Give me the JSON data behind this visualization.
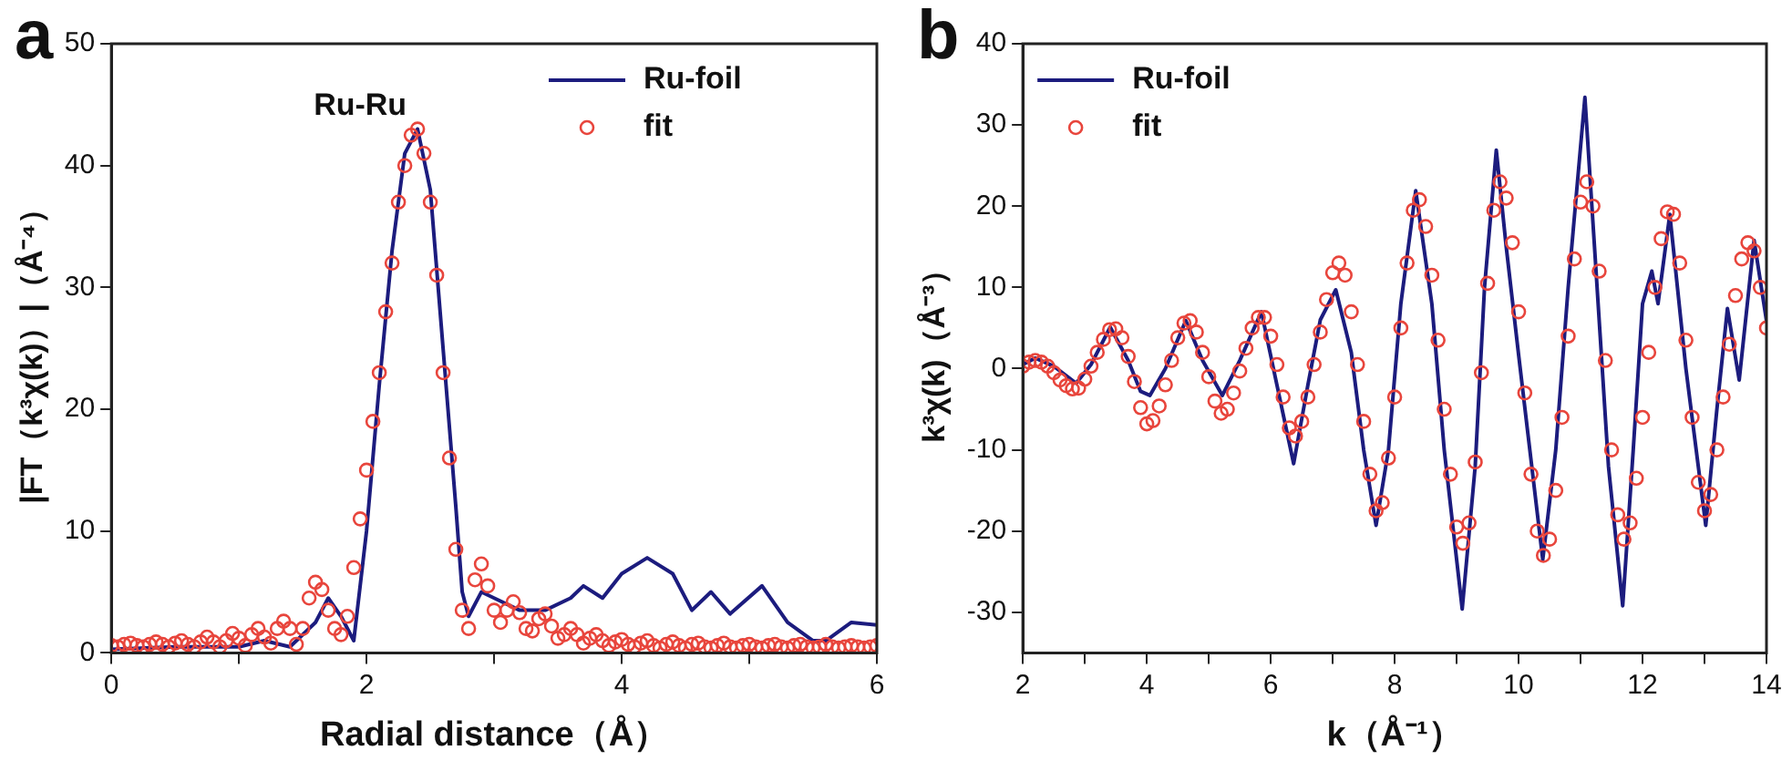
{
  "chart_data": [
    {
      "type": "line",
      "xlabel": "Radial distance（Å）",
      "ylabel": "|FT（k³χ(k)）|（Å⁻⁴）",
      "annotations": [
        "a",
        {
          "text": "Ru-Ru",
          "x": 2.4,
          "y": 43
        }
      ],
      "xlim": [
        0,
        6
      ],
      "xticks": [
        0,
        {
          "value": 1,
          "label": null
        },
        2,
        {
          "value": 3,
          "label": null
        },
        4,
        {
          "value": 5,
          "label": null
        },
        6
      ],
      "ylim": [
        0,
        50
      ],
      "yticks": [
        0,
        10,
        20,
        30,
        40,
        50
      ],
      "legend": "top right",
      "series": [
        {
          "name": "Ru-foil",
          "type": "line",
          "marker": "none",
          "color": "#1c1c7e",
          "x": [
            0,
            0.5,
            1.0,
            1.2,
            1.4,
            1.6,
            1.7,
            1.8,
            1.9,
            2.0,
            2.1,
            2.2,
            2.3,
            2.4,
            2.5,
            2.6,
            2.7,
            2.75,
            2.8,
            2.9,
            3.0,
            3.2,
            3.4,
            3.6,
            3.7,
            3.85,
            4.0,
            4.2,
            4.4,
            4.55,
            4.7,
            4.85,
            5.1,
            5.3,
            5.5,
            5.6,
            5.8,
            6.0
          ],
          "values": [
            0.3,
            0.5,
            0.5,
            1.0,
            0.5,
            2.5,
            4.5,
            3,
            1,
            10,
            22,
            33,
            41,
            43,
            38,
            25,
            12,
            5,
            3,
            5,
            4.5,
            3.5,
            3.5,
            4.5,
            5.5,
            4.5,
            6.5,
            7.8,
            6.5,
            3.5,
            5,
            3.2,
            5.5,
            2.5,
            1.0,
            1.0,
            2.5,
            2.3
          ]
        },
        {
          "name": "fit",
          "type": "scatter",
          "marker": "circle",
          "color": "#e8453c",
          "x": [
            0,
            0.05,
            0.1,
            0.15,
            0.2,
            0.25,
            0.3,
            0.35,
            0.4,
            0.45,
            0.5,
            0.55,
            0.6,
            0.65,
            0.7,
            0.75,
            0.8,
            0.85,
            0.9,
            0.95,
            1.0,
            1.05,
            1.1,
            1.15,
            1.2,
            1.25,
            1.3,
            1.35,
            1.4,
            1.45,
            1.5,
            1.55,
            1.6,
            1.65,
            1.7,
            1.75,
            1.8,
            1.85,
            1.9,
            1.95,
            2.0,
            2.05,
            2.1,
            2.15,
            2.2,
            2.25,
            2.3,
            2.35,
            2.4,
            2.45,
            2.5,
            2.55,
            2.6,
            2.65,
            2.7,
            2.75,
            2.8,
            2.85,
            2.9,
            2.95,
            3.0,
            3.05,
            3.1,
            3.15,
            3.2,
            3.25,
            3.3,
            3.35,
            3.4,
            3.45,
            3.5,
            3.55,
            3.6,
            3.65,
            3.7,
            3.75,
            3.8,
            3.85,
            3.9,
            3.95,
            4.0,
            4.05,
            4.1,
            4.15,
            4.2,
            4.25,
            4.3,
            4.35,
            4.4,
            4.45,
            4.5,
            4.55,
            4.6,
            4.65,
            4.7,
            4.75,
            4.8,
            4.85,
            4.9,
            4.95,
            5.0,
            5.05,
            5.1,
            5.15,
            5.2,
            5.25,
            5.3,
            5.35,
            5.4,
            5.45,
            5.5,
            5.55,
            5.6,
            5.65,
            5.7,
            5.75,
            5.8,
            5.85,
            5.9,
            5.95,
            6.0
          ],
          "values": [
            0.6,
            0.5,
            0.7,
            0.8,
            0.6,
            0.5,
            0.7,
            0.9,
            0.7,
            0.5,
            0.8,
            1.0,
            0.7,
            0.5,
            0.9,
            1.3,
            0.9,
            0.5,
            1.0,
            1.6,
            1.2,
            0.6,
            1.5,
            2.0,
            1.3,
            0.8,
            2.0,
            2.6,
            2.0,
            0.7,
            2.0,
            4.5,
            5.8,
            5.2,
            3.5,
            2.0,
            1.5,
            3.0,
            7.0,
            11,
            15,
            19,
            23,
            28,
            32,
            37,
            40,
            42.5,
            43,
            41,
            37,
            31,
            23,
            16,
            8.5,
            3.5,
            2.0,
            6.0,
            7.3,
            5.5,
            3.5,
            2.5,
            3.5,
            4.2,
            3.3,
            2.0,
            1.8,
            2.8,
            3.2,
            2.2,
            1.2,
            1.5,
            2.0,
            1.5,
            0.8,
            1.2,
            1.5,
            1.0,
            0.6,
            0.9,
            1.1,
            0.7,
            0.5,
            0.8,
            1.0,
            0.6,
            0.4,
            0.7,
            0.9,
            0.6,
            0.4,
            0.7,
            0.8,
            0.5,
            0.4,
            0.6,
            0.8,
            0.5,
            0.4,
            0.6,
            0.7,
            0.5,
            0.4,
            0.6,
            0.7,
            0.5,
            0.4,
            0.6,
            0.7,
            0.5,
            0.4,
            0.5,
            0.7,
            0.5,
            0.4,
            0.5,
            0.6,
            0.5,
            0.4,
            0.5,
            0.6
          ]
        }
      ]
    },
    {
      "type": "line",
      "xlabel": "k（Å⁻¹）",
      "ylabel": "k³χ(k)（Å⁻³）",
      "annotations": [
        "b"
      ],
      "xlim": [
        2,
        14
      ],
      "xticks": [
        2,
        {
          "value": 3,
          "label": null
        },
        4,
        {
          "value": 5,
          "label": null
        },
        6,
        {
          "value": 7,
          "label": null
        },
        8,
        {
          "value": 9,
          "label": null
        },
        10,
        {
          "value": 11,
          "label": null
        },
        12,
        {
          "value": 13,
          "label": null
        },
        14
      ],
      "ylim": [
        -35,
        40
      ],
      "yticks": [
        -30,
        -20,
        -10,
        0,
        10,
        20,
        30,
        40
      ],
      "legend": "top left",
      "series": [
        {
          "name": "Ru-foil",
          "type": "line",
          "marker": "none",
          "color": "#1c1c7e",
          "x": [
            2.0,
            2.2,
            2.5,
            2.86,
            3.1,
            3.41,
            3.7,
            3.9,
            4.05,
            4.3,
            4.63,
            4.9,
            5.22,
            5.5,
            5.85,
            6.1,
            6.37,
            6.6,
            6.8,
            7.05,
            7.3,
            7.5,
            7.7,
            7.9,
            8.1,
            8.34,
            8.6,
            8.8,
            9.09,
            9.3,
            9.45,
            9.64,
            9.8,
            10.0,
            10.15,
            10.39,
            10.6,
            10.8,
            11.07,
            11.25,
            11.45,
            11.68,
            11.85,
            12.0,
            12.15,
            12.25,
            12.44,
            12.7,
            13.02,
            13.2,
            13.37,
            13.56,
            13.8,
            14.0
          ],
          "values": [
            0.5,
            1.3,
            0.3,
            -1.8,
            0.5,
            5.1,
            1,
            -2.8,
            -3.3,
            0,
            5.9,
            1,
            -3.3,
            1,
            7,
            -2,
            -11.7,
            -2,
            6,
            9.7,
            2,
            -10,
            -19.3,
            -10,
            8,
            21.9,
            8,
            -10,
            -29.6,
            -12,
            10,
            26.9,
            15,
            1.7,
            -8,
            -23.5,
            -10,
            10,
            33.4,
            12,
            -12,
            -29.2,
            -10,
            8,
            12,
            8,
            19,
            0,
            -19.3,
            -5,
            7.4,
            -1.4,
            15.8,
            5.9
          ]
        },
        {
          "name": "fit",
          "type": "scatter",
          "marker": "circle",
          "color": "#e8453c",
          "x": [
            2.0,
            2.1,
            2.2,
            2.3,
            2.4,
            2.5,
            2.6,
            2.7,
            2.8,
            2.9,
            3.0,
            3.1,
            3.2,
            3.3,
            3.4,
            3.5,
            3.6,
            3.7,
            3.8,
            3.9,
            4.0,
            4.1,
            4.2,
            4.3,
            4.4,
            4.5,
            4.6,
            4.7,
            4.8,
            4.9,
            5.0,
            5.1,
            5.2,
            5.3,
            5.4,
            5.5,
            5.6,
            5.7,
            5.8,
            5.9,
            6.0,
            6.1,
            6.2,
            6.3,
            6.4,
            6.5,
            6.6,
            6.7,
            6.8,
            6.9,
            7.0,
            7.1,
            7.2,
            7.3,
            7.4,
            7.5,
            7.6,
            7.7,
            7.8,
            7.9,
            8.0,
            8.1,
            8.2,
            8.3,
            8.4,
            8.5,
            8.6,
            8.7,
            8.8,
            8.9,
            9.0,
            9.1,
            9.2,
            9.3,
            9.4,
            9.5,
            9.6,
            9.7,
            9.8,
            9.9,
            10.0,
            10.1,
            10.2,
            10.3,
            10.4,
            10.5,
            10.6,
            10.7,
            10.8,
            10.9,
            11.0,
            11.1,
            11.2,
            11.3,
            11.4,
            11.5,
            11.6,
            11.7,
            11.8,
            11.9,
            12.0,
            12.1,
            12.2,
            12.3,
            12.4,
            12.5,
            12.6,
            12.7,
            12.8,
            12.9,
            13.0,
            13.1,
            13.2,
            13.3,
            13.4,
            13.5,
            13.6,
            13.7,
            13.8,
            13.9,
            14.0
          ],
          "values": [
            0.3,
            0.8,
            1.0,
            0.8,
            0.3,
            -0.5,
            -1.4,
            -2.1,
            -2.5,
            -2.4,
            -1.3,
            0.3,
            2.0,
            3.6,
            4.8,
            4.9,
            3.8,
            1.5,
            -1.6,
            -4.8,
            -6.8,
            -6.4,
            -4.6,
            -2.0,
            1.0,
            3.8,
            5.6,
            5.9,
            4.5,
            2.0,
            -1.0,
            -4.0,
            -5.5,
            -5.0,
            -3.0,
            -0.3,
            2.5,
            5.0,
            6.3,
            6.3,
            4.0,
            0.5,
            -3.5,
            -7.3,
            -8.3,
            -6.5,
            -3.5,
            0.5,
            4.5,
            8.5,
            11.8,
            13,
            11.5,
            7,
            0.5,
            -6.5,
            -13,
            -17.5,
            -16.5,
            -11,
            -3.5,
            5,
            13,
            19.5,
            20.8,
            17.5,
            11.5,
            3.5,
            -5,
            -13,
            -19.5,
            -21.5,
            -19,
            -11.5,
            -0.5,
            10.5,
            19.5,
            23,
            21,
            15.5,
            7,
            -3,
            -13,
            -20,
            -23,
            -21,
            -15,
            -6,
            4,
            13.5,
            20.5,
            23,
            20,
            12,
            1,
            -10,
            -18,
            -21,
            -19,
            -13.5,
            -6,
            2,
            10,
            16,
            19.3,
            19,
            13,
            3.5,
            -6,
            -14,
            -17.5,
            -15.5,
            -10,
            -3.5,
            3,
            9,
            13.5,
            15.5,
            14.5,
            10,
            5
          ]
        }
      ]
    }
  ]
}
